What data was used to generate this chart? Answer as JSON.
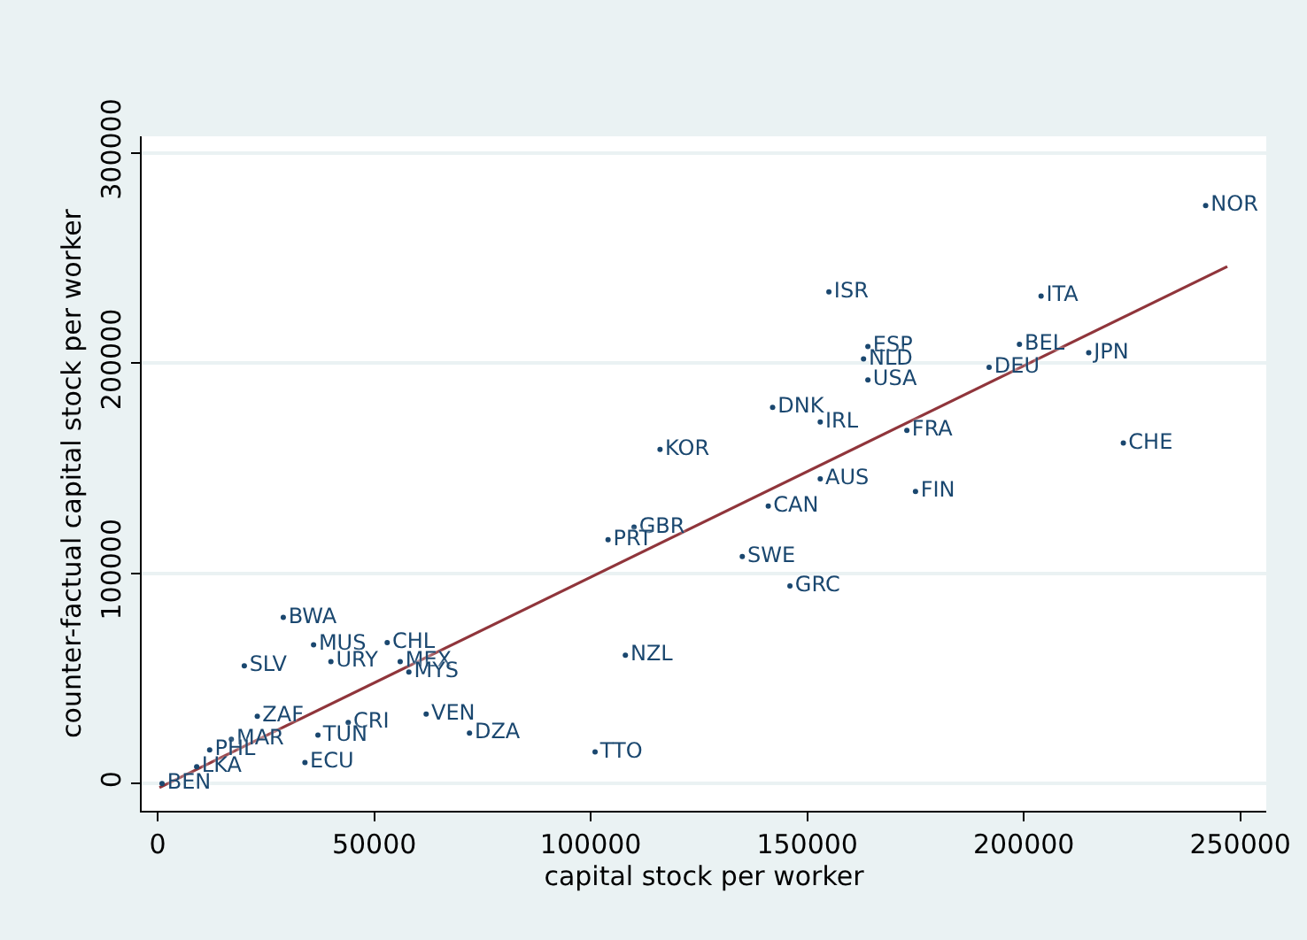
{
  "chart_data": {
    "type": "scatter",
    "xlabel": "capital stock per worker",
    "ylabel": "counter-factual capital stock per worker",
    "xlim": [
      -3700,
      256000
    ],
    "ylim": [
      -13000,
      308000
    ],
    "xticks": [
      0,
      50000,
      100000,
      150000,
      200000,
      250000
    ],
    "yticks": [
      0,
      100000,
      200000,
      300000
    ],
    "grid": "y",
    "series": [
      {
        "type": "scatter",
        "color": "#1a476f",
        "marker": "circle",
        "x": [
          242000,
          155000,
          204000,
          164000,
          163000,
          164000,
          199000,
          215000,
          192000,
          142000,
          153000,
          173000,
          223000,
          116000,
          153000,
          175000,
          141000,
          110000,
          104000,
          135000,
          146000,
          108000,
          101000,
          29000,
          36000,
          53000,
          56000,
          58000,
          40000,
          20000,
          62000,
          72000,
          44000,
          37000,
          34000,
          23000,
          17000,
          12000,
          9000,
          1000
        ],
        "values": [
          275000,
          234000,
          232000,
          208000,
          202000,
          192000,
          209000,
          205000,
          198000,
          179000,
          172000,
          168000,
          162000,
          159000,
          145000,
          139000,
          132000,
          122000,
          116000,
          108000,
          94000,
          61000,
          15000,
          79000,
          66000,
          67000,
          58000,
          53000,
          58000,
          56000,
          33000,
          24000,
          29000,
          23000,
          10000,
          32000,
          21000,
          16000,
          8000,
          0
        ],
        "value_labels": [
          "NOR",
          "ISR",
          "ITA",
          "ESP",
          "NLD",
          "USA",
          "BEL",
          "JPN",
          "DEU",
          "DNK",
          "IRL",
          "FRA",
          "CHE",
          "KOR",
          "AUS",
          "FIN",
          "CAN",
          "GBR",
          "PRT",
          "SWE",
          "GRC",
          "NZL",
          "TTO",
          "BWA",
          "MUS",
          "CHL",
          "MEX",
          "MYS",
          "URY",
          "SLV",
          "VEN",
          "DZA",
          "CRI",
          "TUN",
          "ECU",
          "ZAF",
          "MAR",
          "PHL",
          "LKA",
          "BEN"
        ]
      },
      {
        "type": "line",
        "color": "#90353b",
        "x": [
          400,
          247000
        ],
        "values": [
          -2000,
          246000
        ]
      }
    ]
  }
}
